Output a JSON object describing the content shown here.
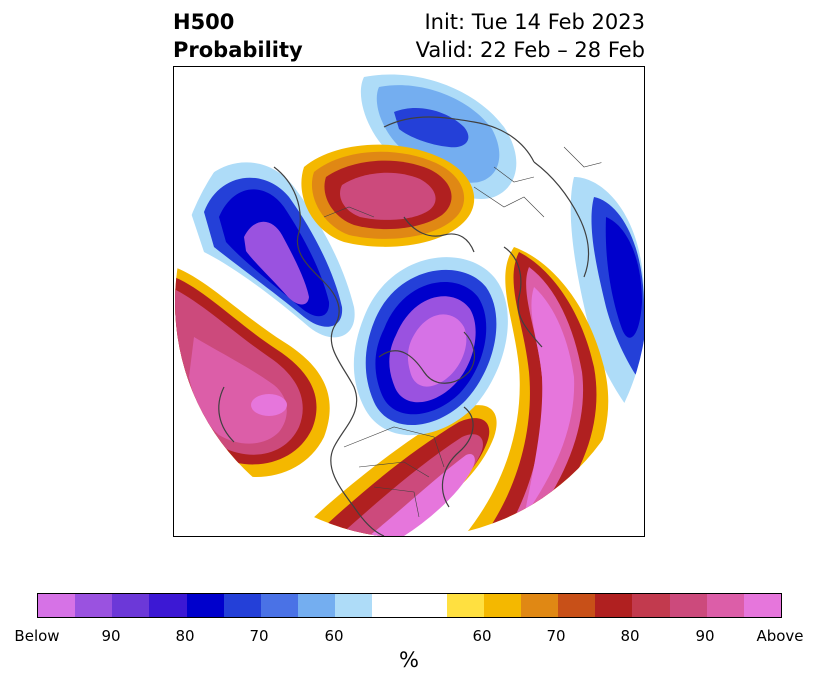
{
  "title": {
    "left_line1": "H500",
    "left_line2": "Probability",
    "right_line1": "Init: Tue 14 Feb 2023",
    "right_line2": "Valid: 22 Feb – 28 Feb"
  },
  "colorbar": {
    "colors": [
      "#d672e6",
      "#9a52e0",
      "#6c38d8",
      "#3c18d4",
      "#0000cc",
      "#2440d8",
      "#4a72e6",
      "#74aef0",
      "#aedcf8",
      "#ffffff",
      "#ffe040",
      "#f4b800",
      "#e08814",
      "#c85018",
      "#b02020",
      "#c23a4e",
      "#cc4a7c",
      "#dc5ea8",
      "#e676dc"
    ],
    "tick_labels": [
      "Below",
      "90",
      "80",
      "70",
      "60",
      "60",
      "70",
      "80",
      "90",
      "Above"
    ],
    "unit_label": "%"
  },
  "map": {
    "fill_colors": {
      "above_high": "#e676dc",
      "above_mid": "#cc4a7c",
      "above_low": "#b02020",
      "warm_orange": "#e08814",
      "warm_yellow": "#f4b800",
      "below_high": "#9a52e0",
      "below_mid": "#0000cc",
      "below_low": "#4a72e6",
      "light_blue": "#aedcf8",
      "coast": "#404040"
    }
  }
}
